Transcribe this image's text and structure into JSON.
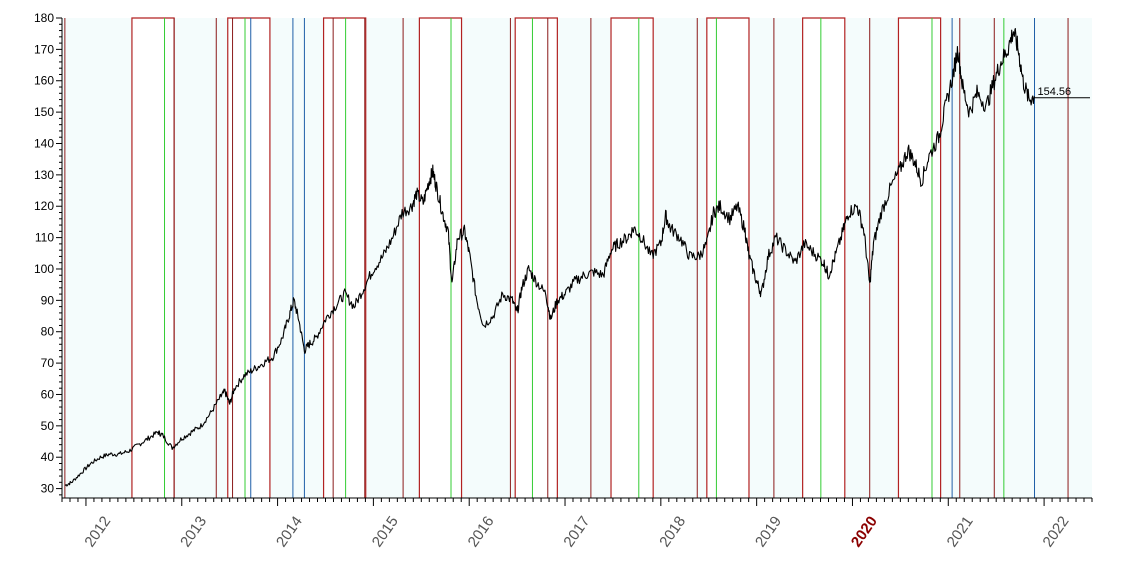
{
  "chart_data": {
    "type": "line",
    "title": "",
    "xlabel": "",
    "ylabel": "",
    "ylim": [
      27,
      180
    ],
    "xlim": [
      2011.75,
      2022.5
    ],
    "y_ticks": [
      30,
      40,
      50,
      60,
      70,
      80,
      90,
      100,
      110,
      120,
      130,
      140,
      150,
      160,
      170,
      180
    ],
    "x_ticks": [
      {
        "value": 2012,
        "label": "2012",
        "highlight": false
      },
      {
        "value": 2013,
        "label": "2013",
        "highlight": false
      },
      {
        "value": 2014,
        "label": "2014",
        "highlight": false
      },
      {
        "value": 2015,
        "label": "2015",
        "highlight": false
      },
      {
        "value": 2016,
        "label": "2016",
        "highlight": false
      },
      {
        "value": 2017,
        "label": "2017",
        "highlight": false
      },
      {
        "value": 2018,
        "label": "2018",
        "highlight": false
      },
      {
        "value": 2019,
        "label": "2019",
        "highlight": false
      },
      {
        "value": 2020,
        "label": "2020",
        "highlight": true
      },
      {
        "value": 2021,
        "label": "2021",
        "highlight": false
      },
      {
        "value": 2022,
        "label": "2022",
        "highlight": false
      }
    ],
    "last_value_label": "154.56",
    "last_value": 154.56,
    "grid": false,
    "colors": {
      "price": "#000000",
      "plot_background": "#f4fcfc",
      "season_band": "#ffffff",
      "season_outline": "#b22222",
      "red_marker": "#8b1a1a",
      "green_marker": "#33cc33",
      "blue_marker": "#1f5fa8",
      "axis": "#000000",
      "tick_label": "#555555",
      "highlight_label": "#8b0000"
    },
    "season_windows": [
      [
        2012.48,
        2012.92
      ],
      [
        2013.48,
        2013.92
      ],
      [
        2014.48,
        2014.92
      ],
      [
        2015.48,
        2015.92
      ],
      [
        2016.48,
        2016.92
      ],
      [
        2017.48,
        2017.92
      ],
      [
        2018.48,
        2018.92
      ],
      [
        2019.48,
        2019.92
      ],
      [
        2020.48,
        2020.92
      ]
    ],
    "red_markers": [
      2011.78,
      2012.92,
      2013.36,
      2013.53,
      2014.58,
      2014.91,
      2015.31,
      2016.43,
      2016.82,
      2017.27,
      2018.38,
      2019.18,
      2020.18,
      2021.12,
      2021.48,
      2022.25
    ],
    "green_markers": [
      2012.82,
      2013.66,
      2014.71,
      2015.81,
      2016.66,
      2017.77,
      2018.58,
      2019.67,
      2020.83,
      2021.58
    ],
    "blue_markers": [
      2013.72,
      2014.16,
      2014.28,
      2021.04,
      2021.9
    ],
    "series": [
      {
        "values": [
          [
            2011.78,
            31
          ],
          [
            2011.85,
            32
          ],
          [
            2011.95,
            35
          ],
          [
            2012.05,
            38
          ],
          [
            2012.15,
            40
          ],
          [
            2012.25,
            41
          ],
          [
            2012.35,
            41
          ],
          [
            2012.45,
            42
          ],
          [
            2012.55,
            44
          ],
          [
            2012.65,
            46
          ],
          [
            2012.75,
            48
          ],
          [
            2012.8,
            47
          ],
          [
            2012.9,
            43
          ],
          [
            2013.0,
            46
          ],
          [
            2013.1,
            48
          ],
          [
            2013.2,
            50
          ],
          [
            2013.3,
            54
          ],
          [
            2013.4,
            59
          ],
          [
            2013.45,
            61
          ],
          [
            2013.5,
            57
          ],
          [
            2013.55,
            62
          ],
          [
            2013.65,
            66
          ],
          [
            2013.75,
            68
          ],
          [
            2013.85,
            70
          ],
          [
            2013.95,
            72
          ],
          [
            2014.05,
            78
          ],
          [
            2014.12,
            85
          ],
          [
            2014.17,
            90
          ],
          [
            2014.22,
            84
          ],
          [
            2014.28,
            74
          ],
          [
            2014.33,
            76
          ],
          [
            2014.4,
            78
          ],
          [
            2014.5,
            84
          ],
          [
            2014.6,
            88
          ],
          [
            2014.7,
            92
          ],
          [
            2014.8,
            88
          ],
          [
            2014.9,
            94
          ],
          [
            2015.0,
            100
          ],
          [
            2015.1,
            104
          ],
          [
            2015.2,
            110
          ],
          [
            2015.3,
            118
          ],
          [
            2015.4,
            120
          ],
          [
            2015.45,
            124
          ],
          [
            2015.52,
            121
          ],
          [
            2015.58,
            128
          ],
          [
            2015.62,
            131
          ],
          [
            2015.66,
            126
          ],
          [
            2015.72,
            118
          ],
          [
            2015.78,
            112
          ],
          [
            2015.82,
            95
          ],
          [
            2015.88,
            110
          ],
          [
            2015.95,
            112
          ],
          [
            2016.0,
            105
          ],
          [
            2016.08,
            90
          ],
          [
            2016.15,
            82
          ],
          [
            2016.25,
            85
          ],
          [
            2016.35,
            92
          ],
          [
            2016.45,
            90
          ],
          [
            2016.5,
            86
          ],
          [
            2016.55,
            94
          ],
          [
            2016.62,
            100
          ],
          [
            2016.7,
            96
          ],
          [
            2016.8,
            92
          ],
          [
            2016.85,
            84
          ],
          [
            2016.92,
            90
          ],
          [
            2017.0,
            92
          ],
          [
            2017.1,
            96
          ],
          [
            2017.2,
            98
          ],
          [
            2017.3,
            99
          ],
          [
            2017.4,
            98
          ],
          [
            2017.48,
            106
          ],
          [
            2017.55,
            108
          ],
          [
            2017.65,
            110
          ],
          [
            2017.72,
            113
          ],
          [
            2017.8,
            110
          ],
          [
            2017.9,
            104
          ],
          [
            2018.0,
            108
          ],
          [
            2018.05,
            117
          ],
          [
            2018.1,
            113
          ],
          [
            2018.2,
            110
          ],
          [
            2018.3,
            104
          ],
          [
            2018.4,
            104
          ],
          [
            2018.48,
            108
          ],
          [
            2018.55,
            118
          ],
          [
            2018.62,
            120
          ],
          [
            2018.72,
            116
          ],
          [
            2018.8,
            120
          ],
          [
            2018.88,
            112
          ],
          [
            2018.92,
            104
          ],
          [
            2019.0,
            96
          ],
          [
            2019.05,
            92
          ],
          [
            2019.12,
            104
          ],
          [
            2019.2,
            110
          ],
          [
            2019.3,
            106
          ],
          [
            2019.4,
            102
          ],
          [
            2019.5,
            108
          ],
          [
            2019.6,
            105
          ],
          [
            2019.7,
            102
          ],
          [
            2019.75,
            98
          ],
          [
            2019.82,
            104
          ],
          [
            2019.9,
            112
          ],
          [
            2019.96,
            118
          ],
          [
            2020.05,
            120
          ],
          [
            2020.12,
            112
          ],
          [
            2020.18,
            95
          ],
          [
            2020.22,
            108
          ],
          [
            2020.3,
            118
          ],
          [
            2020.4,
            126
          ],
          [
            2020.5,
            132
          ],
          [
            2020.58,
            138
          ],
          [
            2020.65,
            134
          ],
          [
            2020.72,
            128
          ],
          [
            2020.8,
            136
          ],
          [
            2020.9,
            142
          ],
          [
            2020.96,
            150
          ],
          [
            2021.05,
            162
          ],
          [
            2021.1,
            170
          ],
          [
            2021.15,
            158
          ],
          [
            2021.22,
            150
          ],
          [
            2021.3,
            156
          ],
          [
            2021.4,
            152
          ],
          [
            2021.48,
            160
          ],
          [
            2021.55,
            166
          ],
          [
            2021.62,
            170
          ],
          [
            2021.68,
            176
          ],
          [
            2021.73,
            170
          ],
          [
            2021.78,
            160
          ],
          [
            2021.84,
            154
          ],
          [
            2021.9,
            155
          ]
        ]
      }
    ]
  }
}
